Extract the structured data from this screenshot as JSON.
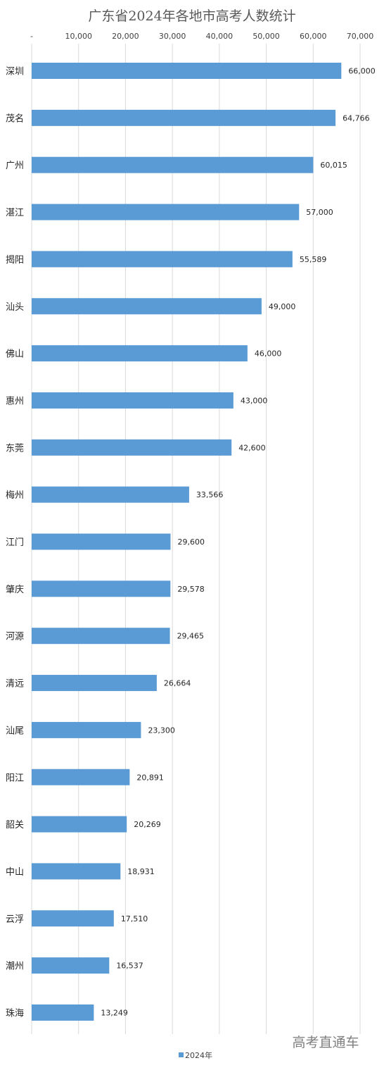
{
  "chart_data": {
    "type": "bar",
    "orientation": "horizontal",
    "title": "广东省2024年各地市高考人数统计",
    "categories": [
      "深圳",
      "茂名",
      "广州",
      "湛江",
      "揭阳",
      "汕头",
      "佛山",
      "惠州",
      "东莞",
      "梅州",
      "江门",
      "肇庆",
      "河源",
      "清远",
      "汕尾",
      "阳江",
      "韶关",
      "中山",
      "云浮",
      "潮州",
      "珠海"
    ],
    "series": [
      {
        "name": "2024年",
        "values": [
          66000,
          64766,
          60015,
          57000,
          55589,
          49000,
          46000,
          43000,
          42600,
          33566,
          29600,
          29578,
          29465,
          26664,
          23300,
          20891,
          20269,
          18931,
          17510,
          16537,
          13249
        ],
        "labels": [
          "66,000",
          "64,766",
          "60,015",
          "57,000",
          "55,589",
          "49,000",
          "46,000",
          "43,000",
          "42,600",
          "33,566",
          "29,600",
          "29,578",
          "29,465",
          "26,664",
          "23,300",
          "20,891",
          "20,269",
          "18,931",
          "17,510",
          "16,537",
          "13,249"
        ]
      }
    ],
    "xlim": [
      0,
      70000
    ],
    "xticks": [
      0,
      10000,
      20000,
      30000,
      40000,
      50000,
      60000,
      70000
    ],
    "xtick_labels": [
      "-",
      "10,000",
      "20,000",
      "30,000",
      "40,000",
      "50,000",
      "60,000",
      "70,000"
    ],
    "x_axis_position": "top",
    "grid": true,
    "legend_position": "bottom",
    "color": "#5b9bd5"
  },
  "watermark": "高考直通车"
}
